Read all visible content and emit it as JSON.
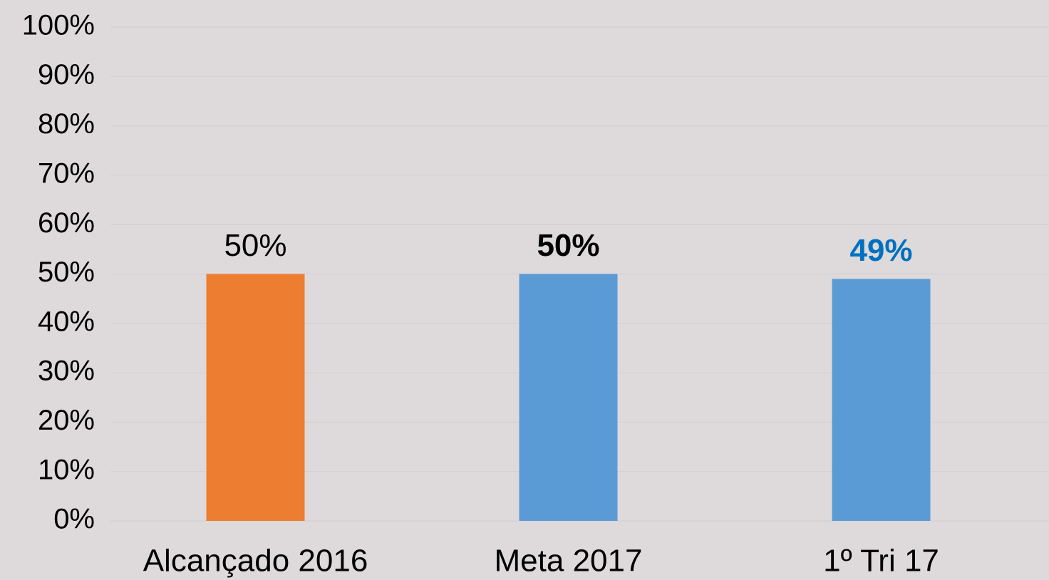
{
  "chart_data": {
    "type": "bar",
    "categories": [
      "Alcançado 2016",
      "Meta 2017",
      "1º Tri 17"
    ],
    "values": [
      50,
      50,
      49
    ],
    "value_labels": [
      "50%",
      "50%",
      "49%"
    ],
    "colors": [
      "#ed7d31",
      "#5b9bd5",
      "#5b9bd5"
    ],
    "value_label_colors": [
      "#000000",
      "#000000",
      "#0070c0"
    ],
    "value_label_bold": [
      false,
      true,
      true
    ],
    "ylim": [
      0,
      100
    ],
    "yticks": [
      {
        "value": 0,
        "label": "0%"
      },
      {
        "value": 10,
        "label": "10%"
      },
      {
        "value": 20,
        "label": "20%"
      },
      {
        "value": 30,
        "label": "30%"
      },
      {
        "value": 40,
        "label": "40%"
      },
      {
        "value": 50,
        "label": "50%"
      },
      {
        "value": 60,
        "label": "60%"
      },
      {
        "value": 70,
        "label": "70%"
      },
      {
        "value": 80,
        "label": "80%"
      },
      {
        "value": 90,
        "label": "90%"
      },
      {
        "value": 100,
        "label": "100%"
      }
    ],
    "grid": true
  }
}
